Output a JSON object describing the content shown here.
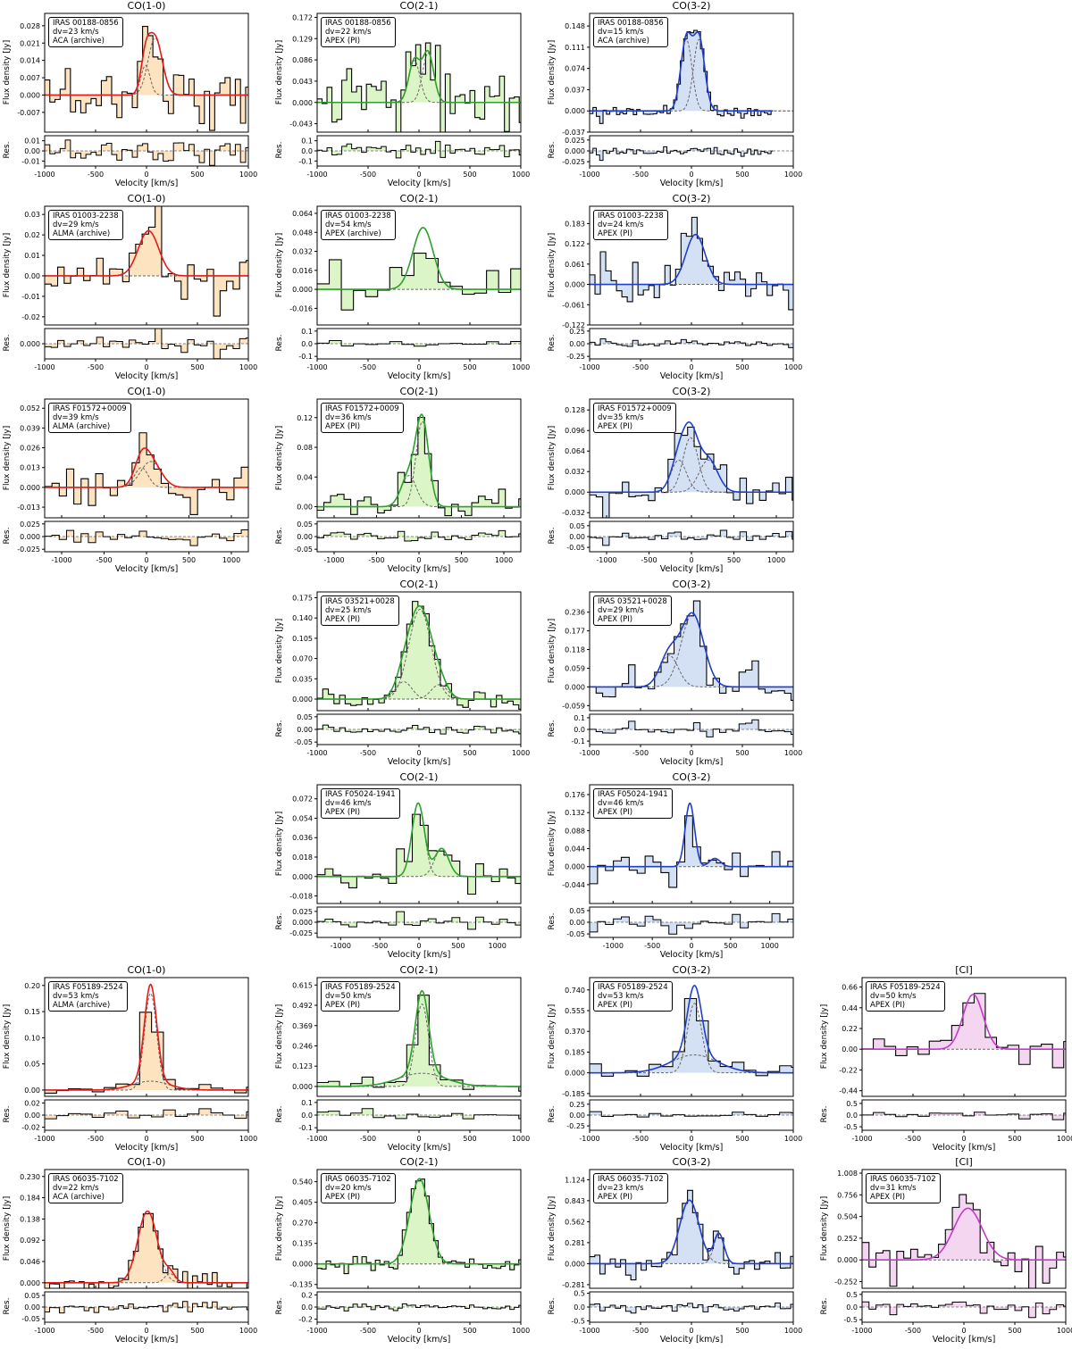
{
  "figure": {
    "xlabel": "Velocity [km/s]",
    "ylabel_main": "Flux density [Jy]",
    "ylabel_res": "Res.",
    "colors": {
      "CO(1-0)": {
        "line": "#e41a1c",
        "fill": "#fde3c0"
      },
      "CO(2-1)": {
        "line": "#2ca02c",
        "fill": "#dcf5c6"
      },
      "CO(3-2)": {
        "line": "#1f3fcc",
        "fill": "#d4e0f4"
      },
      "[CI]": {
        "line": "#c23bc8",
        "fill": "#f5d6f1"
      }
    }
  },
  "chart_data": [
    {
      "row": 0,
      "col": 0,
      "type": "line",
      "title": "CO(1-0)",
      "source": "IRAS 00188-0856",
      "dv": "dv=23 km/s",
      "telescope": "ACA (archive)",
      "xlim": [
        -1000,
        1000
      ],
      "xticks": [
        "-1000",
        "-500",
        "0",
        "500",
        "1000"
      ],
      "ylim": [
        -0.015,
        0.033
      ],
      "yticks": [
        "0.028",
        "0.021",
        "0.014",
        "0.007",
        "0.000",
        "-0.007"
      ],
      "res_ylim": [
        -0.015,
        0.015
      ],
      "res_yticks": [
        "0.01",
        "0.00",
        "-0.01"
      ],
      "components": [
        {
          "amp": 0.012,
          "center": -10,
          "sigma": 45
        },
        {
          "amp": 0.023,
          "center": 85,
          "sigma": 70
        }
      ],
      "noise": 0.007,
      "bin_width": 23
    },
    {
      "row": 0,
      "col": 1,
      "type": "line",
      "title": "CO(2-1)",
      "source": "IRAS 00188-0856",
      "dv": "dv=22 km/s",
      "telescope": "APEX (PI)",
      "xlim": [
        -1000,
        1000
      ],
      "xticks": [
        "-1000",
        "-500",
        "0",
        "500",
        "1000"
      ],
      "ylim": [
        -0.06,
        0.18
      ],
      "yticks": [
        "0.172",
        "0.129",
        "0.086",
        "0.043",
        "0.000",
        "-0.043"
      ],
      "res_ylim": [
        -0.15,
        0.15
      ],
      "res_yticks": [
        "0.1",
        "0.0",
        "-0.1"
      ],
      "components": [
        {
          "amp": 0.085,
          "center": -45,
          "sigma": 55
        },
        {
          "amp": 0.1,
          "center": 90,
          "sigma": 55
        }
      ],
      "noise": 0.045,
      "bin_width": 22
    },
    {
      "row": 0,
      "col": 2,
      "type": "line",
      "title": "CO(3-2)",
      "source": "IRAS 00188-0856",
      "dv": "dv=15 km/s",
      "telescope": "ACA (archive)",
      "xlim": [
        -1000,
        1000
      ],
      "xticks": [
        "-1000",
        "-500",
        "0",
        "500",
        "1000"
      ],
      "ylim": [
        -0.037,
        0.17
      ],
      "data_xmax": 800,
      "yticks": [
        "0.148",
        "0.111",
        "0.074",
        "0.037",
        "0.000",
        "-0.037"
      ],
      "res_ylim": [
        -0.035,
        0.035
      ],
      "res_yticks": [
        "0.025",
        "0.000",
        "-0.025"
      ],
      "components": [
        {
          "amp": 0.125,
          "center": -50,
          "sigma": 55
        },
        {
          "amp": 0.125,
          "center": 75,
          "sigma": 55
        }
      ],
      "noise": 0.007,
      "bin_width": 15
    },
    {
      "row": 1,
      "col": 0,
      "type": "line",
      "title": "CO(1-0)",
      "source": "IRAS 01003-2238",
      "dv": "dv=29 km/s",
      "telescope": "ALMA (archive)",
      "xlim": [
        -1000,
        1000
      ],
      "xticks": [
        "-1000",
        "-500",
        "0",
        "500",
        "1000"
      ],
      "ylim": [
        -0.024,
        0.034
      ],
      "yticks": [
        "0.03",
        "0.02",
        "0.01",
        "0.00",
        "-0.01",
        "-0.02"
      ],
      "res_ylim": [
        -0.02,
        0.02
      ],
      "res_yticks": [
        "0.025",
        "0.000",
        "-0.025"
      ],
      "components": [
        {
          "amp": 0.022,
          "center": 20,
          "sigma": 100
        }
      ],
      "noise": 0.008,
      "bin_width": 29
    },
    {
      "row": 1,
      "col": 1,
      "type": "line",
      "title": "CO(2-1)",
      "source": "IRAS 01003-2238",
      "dv": "dv=54 km/s",
      "telescope": "APEX (archive)",
      "xlim": [
        -1000,
        1000
      ],
      "xticks": [
        "-1000",
        "-500",
        "0",
        "500",
        "1000"
      ],
      "ylim": [
        -0.03,
        0.07
      ],
      "yticks": [
        "0.064",
        "0.048",
        "0.032",
        "0.016",
        "0.000",
        "-0.016"
      ],
      "res_ylim": [
        -0.12,
        0.12
      ],
      "res_yticks": [
        "0.1",
        "0.0",
        "-0.1"
      ],
      "components": [
        {
          "amp": 0.052,
          "center": 40,
          "sigma": 100
        }
      ],
      "noise": 0.016,
      "bin_width": 54
    },
    {
      "row": 1,
      "col": 2,
      "type": "line",
      "title": "CO(3-2)",
      "source": "IRAS 01003-2238",
      "dv": "dv=24 km/s",
      "telescope": "APEX (PI)",
      "xlim": [
        -1000,
        1000
      ],
      "xticks": [
        "-1000",
        "-500",
        "0",
        "500",
        "1000"
      ],
      "ylim": [
        -0.122,
        0.235
      ],
      "yticks": [
        "0.183",
        "0.122",
        "0.061",
        "0.000",
        "-0.061",
        "-0.122"
      ],
      "res_ylim": [
        -0.3,
        0.3
      ],
      "res_yticks": [
        "0.25",
        "0.00",
        "-0.25"
      ],
      "components": [
        {
          "amp": 0.15,
          "center": 40,
          "sigma": 95
        }
      ],
      "noise": 0.05,
      "bin_width": 24
    },
    {
      "row": 2,
      "col": 0,
      "type": "line",
      "title": "CO(1-0)",
      "source": "IRAS F01572+0009",
      "dv": "dv=39 km/s",
      "telescope": "ALMA (archive)",
      "xlim": [
        -1200,
        1200
      ],
      "xticks": [
        "-1000",
        "-500",
        "0",
        "500",
        "1000"
      ],
      "ylim": [
        -0.02,
        0.058
      ],
      "yticks": [
        "0.052",
        "0.039",
        "0.026",
        "0.013",
        "0.000",
        "-0.013"
      ],
      "res_ylim": [
        -0.03,
        0.03
      ],
      "res_yticks": [
        "0.025",
        "0.000",
        "-0.025"
      ],
      "components": [
        {
          "amp": 0.013,
          "center": -60,
          "sigma": 80
        },
        {
          "amp": 0.017,
          "center": 50,
          "sigma": 120
        }
      ],
      "noise": 0.008,
      "bin_width": 39
    },
    {
      "row": 2,
      "col": 1,
      "type": "line",
      "title": "CO(2-1)",
      "source": "IRAS F01572+0009",
      "dv": "dv=36 km/s",
      "telescope": "APEX (PI)",
      "xlim": [
        -1200,
        1200
      ],
      "xticks": [
        "-1000",
        "-500",
        "0",
        "500",
        "1000"
      ],
      "ylim": [
        -0.015,
        0.145
      ],
      "yticks": [
        "0.12",
        "0.08",
        "0.04",
        "0.00"
      ],
      "res_ylim": [
        -0.06,
        0.06
      ],
      "res_yticks": [
        "0.05",
        "0.00",
        "-0.05"
      ],
      "components": [
        {
          "amp": 0.042,
          "center": -120,
          "sigma": 90
        },
        {
          "amp": 0.115,
          "center": 40,
          "sigma": 75
        }
      ],
      "noise": 0.012,
      "bin_width": 36
    },
    {
      "row": 2,
      "col": 2,
      "type": "line",
      "title": "CO(3-2)",
      "source": "IRAS F01572+0009",
      "dv": "dv=35 km/s",
      "telescope": "APEX (PI)",
      "xlim": [
        -1200,
        1200
      ],
      "xticks": [
        "-1000",
        "-500",
        "0",
        "500",
        "1000"
      ],
      "ylim": [
        -0.04,
        0.145
      ],
      "yticks": [
        "0.128",
        "0.096",
        "0.064",
        "0.032",
        "0.000",
        "-0.032"
      ],
      "res_ylim": [
        -0.07,
        0.07
      ],
      "res_yticks": [
        "0.05",
        "0.00",
        "-0.05"
      ],
      "components": [
        {
          "amp": 0.05,
          "center": -150,
          "sigma": 90
        },
        {
          "amp": 0.085,
          "center": -10,
          "sigma": 90
        },
        {
          "amp": 0.05,
          "center": 200,
          "sigma": 110
        }
      ],
      "noise": 0.018,
      "bin_width": 35
    },
    {
      "row": 3,
      "col": 1,
      "type": "line",
      "title": "CO(2-1)",
      "source": "IRAS 03521+0028",
      "dv": "dv=25 km/s",
      "telescope": "APEX (PI)",
      "xlim": [
        -1000,
        1000
      ],
      "xticks": [
        "-1000",
        "-500",
        "0",
        "500",
        "1000"
      ],
      "ylim": [
        -0.02,
        0.185
      ],
      "yticks": [
        "0.175",
        "0.140",
        "0.105",
        "0.070",
        "0.035",
        "0.000"
      ],
      "res_ylim": [
        -0.06,
        0.06
      ],
      "res_yticks": [
        "0.05",
        "0.00",
        "-0.05"
      ],
      "components": [
        {
          "amp": 0.03,
          "center": -150,
          "sigma": 80
        },
        {
          "amp": 0.155,
          "center": 10,
          "sigma": 110
        },
        {
          "amp": 0.025,
          "center": 200,
          "sigma": 80
        }
      ],
      "noise": 0.012,
      "bin_width": 25
    },
    {
      "row": 3,
      "col": 2,
      "type": "line",
      "title": "CO(3-2)",
      "source": "IRAS 03521+0028",
      "dv": "dv=29 km/s",
      "telescope": "APEX (PI)",
      "xlim": [
        -1000,
        1000
      ],
      "xticks": [
        "-1000",
        "-500",
        "0",
        "500",
        "1000"
      ],
      "ylim": [
        -0.075,
        0.3
      ],
      "yticks": [
        "0.236",
        "0.177",
        "0.118",
        "0.059",
        "0.000",
        "-0.059"
      ],
      "res_ylim": [
        -0.13,
        0.13
      ],
      "res_yticks": [
        "0.1",
        "0.0",
        "-0.1"
      ],
      "components": [
        {
          "amp": 0.1,
          "center": -220,
          "sigma": 90
        },
        {
          "amp": 0.23,
          "center": 10,
          "sigma": 110
        }
      ],
      "noise": 0.03,
      "bin_width": 29
    },
    {
      "row": 4,
      "col": 1,
      "type": "line",
      "title": "CO(2-1)",
      "source": "IRAS F05024-1941",
      "dv": "dv=46 km/s",
      "telescope": "APEX (PI)",
      "xlim": [
        -1300,
        1300
      ],
      "xticks": [
        "-1000",
        "-500",
        "0",
        "500",
        "1000"
      ],
      "ylim": [
        -0.025,
        0.085
      ],
      "yticks": [
        "0.072",
        "0.054",
        "0.036",
        "0.018",
        "0.000",
        "-0.018"
      ],
      "res_ylim": [
        -0.035,
        0.035
      ],
      "res_yticks": [
        "0.025",
        "0.000",
        "-0.025"
      ],
      "components": [
        {
          "amp": 0.068,
          "center": -10,
          "sigma": 80
        },
        {
          "amp": 0.026,
          "center": 290,
          "sigma": 90
        }
      ],
      "noise": 0.009,
      "bin_width": 46
    },
    {
      "row": 4,
      "col": 2,
      "type": "line",
      "title": "CO(3-2)",
      "source": "IRAS F05024-1941",
      "dv": "dv=46 km/s",
      "telescope": "APEX (PI)",
      "xlim": [
        -1300,
        1300
      ],
      "xticks": [
        "-1000",
        "-500",
        "0",
        "500",
        "1000"
      ],
      "ylim": [
        -0.09,
        0.2
      ],
      "yticks": [
        "0.176",
        "0.132",
        "0.088",
        "0.044",
        "0.000",
        "-0.044"
      ],
      "res_ylim": [
        -0.065,
        0.065
      ],
      "res_yticks": [
        "0.05",
        "0.00",
        "-0.05"
      ],
      "components": [
        {
          "amp": 0.155,
          "center": -20,
          "sigma": 60
        },
        {
          "amp": 0.02,
          "center": 300,
          "sigma": 70
        }
      ],
      "noise": 0.022,
      "bin_width": 46
    },
    {
      "row": 5,
      "col": 0,
      "type": "line",
      "title": "CO(1-0)",
      "source": "IRAS F05189-2524",
      "dv": "dv=53 km/s",
      "telescope": "ALMA (archive)",
      "xlim": [
        -1000,
        1000
      ],
      "xticks": [
        "-1000",
        "-500",
        "0",
        "500",
        "1000"
      ],
      "ylim": [
        -0.012,
        0.215
      ],
      "yticks": [
        "0.20",
        "0.15",
        "0.10",
        "0.05",
        "0.00"
      ],
      "res_ylim": [
        -0.025,
        0.025
      ],
      "res_yticks": [
        "0.02",
        "0.00",
        "-0.02"
      ],
      "components": [
        {
          "amp": 0.185,
          "center": 40,
          "sigma": 60
        },
        {
          "amp": 0.017,
          "center": 40,
          "sigma": 180
        }
      ],
      "noise": 0.005,
      "bin_width": 53
    },
    {
      "row": 5,
      "col": 1,
      "type": "line",
      "title": "CO(2-1)",
      "source": "IRAS F05189-2524",
      "dv": "dv=50 km/s",
      "telescope": "APEX (PI)",
      "xlim": [
        -1000,
        1000
      ],
      "xticks": [
        "-1000",
        "-500",
        "0",
        "500",
        "1000"
      ],
      "ylim": [
        -0.06,
        0.66
      ],
      "yticks": [
        "0.615",
        "0.492",
        "0.369",
        "0.246",
        "0.123",
        "0.000"
      ],
      "res_ylim": [
        -0.12,
        0.12
      ],
      "res_yticks": [
        "0.1",
        "0.0",
        "-0.1"
      ],
      "components": [
        {
          "amp": 0.5,
          "center": 30,
          "sigma": 65
        },
        {
          "amp": 0.08,
          "center": 30,
          "sigma": 230
        }
      ],
      "noise": 0.025,
      "bin_width": 50
    },
    {
      "row": 5,
      "col": 2,
      "type": "line",
      "title": "CO(3-2)",
      "source": "IRAS F05189-2524",
      "dv": "dv=53 km/s",
      "telescope": "APEX (PI)",
      "xlim": [
        -1000,
        1000
      ],
      "xticks": [
        "-1000",
        "-500",
        "0",
        "500",
        "1000"
      ],
      "ylim": [
        -0.21,
        0.85
      ],
      "yticks": [
        "0.740",
        "0.555",
        "0.370",
        "0.185",
        "0.000",
        "-0.185"
      ],
      "res_ylim": [
        -0.35,
        0.35
      ],
      "res_yticks": [
        "0.25",
        "0.00",
        "-0.25"
      ],
      "components": [
        {
          "amp": 0.62,
          "center": 30,
          "sigma": 70
        },
        {
          "amp": 0.16,
          "center": 30,
          "sigma": 230
        }
      ],
      "noise": 0.05,
      "bin_width": 53
    },
    {
      "row": 5,
      "col": 3,
      "type": "line",
      "title": "[CI]",
      "source": "IRAS F05189-2524",
      "dv": "dv=50 km/s",
      "telescope": "APEX (PI)",
      "xlim": [
        -1000,
        1000
      ],
      "xticks": [
        "-1000",
        "-500",
        "0",
        "500",
        "1000"
      ],
      "ylim": [
        -0.5,
        0.76
      ],
      "yticks": [
        "0.66",
        "0.44",
        "0.22",
        "0.00",
        "-0.22",
        "-0.44"
      ],
      "res_ylim": [
        -0.65,
        0.65
      ],
      "res_yticks": [
        "0.5",
        "0.0",
        "-0.5"
      ],
      "components": [
        {
          "amp": 0.58,
          "center": 90,
          "sigma": 100
        }
      ],
      "noise": 0.1,
      "bin_width": 50
    },
    {
      "row": 6,
      "col": 0,
      "type": "line",
      "title": "CO(1-0)",
      "source": "IRAS 06035-7102",
      "dv": "dv=22 km/s",
      "telescope": "ACA (archive)",
      "xlim": [
        -1000,
        1000
      ],
      "xticks": [
        "-1000",
        "-500",
        "0",
        "500",
        "1000"
      ],
      "ylim": [
        -0.012,
        0.245
      ],
      "yticks": [
        "0.230",
        "0.184",
        "0.138",
        "0.092",
        "0.046",
        "0.000"
      ],
      "res_ylim": [
        -0.065,
        0.065
      ],
      "res_yticks": [
        "0.05",
        "0.00",
        "-0.05"
      ],
      "components": [
        {
          "amp": 0.155,
          "center": 10,
          "sigma": 95
        },
        {
          "amp": 0.02,
          "center": 230,
          "sigma": 50
        }
      ],
      "noise": 0.015,
      "bin_width": 22
    },
    {
      "row": 6,
      "col": 1,
      "type": "line",
      "title": "CO(2-1)",
      "source": "IRAS 06035-7102",
      "dv": "dv=20 km/s",
      "telescope": "APEX (PI)",
      "xlim": [
        -1000,
        1000
      ],
      "xticks": [
        "-1000",
        "-500",
        "0",
        "500",
        "1000"
      ],
      "ylim": [
        -0.16,
        0.62
      ],
      "yticks": [
        "0.540",
        "0.405",
        "0.270",
        "0.135",
        "0.000",
        "-0.135"
      ],
      "res_ylim": [
        -0.25,
        0.25
      ],
      "res_yticks": [
        "0.2",
        "0.0",
        "-0.2"
      ],
      "components": [
        {
          "amp": 0.56,
          "center": 5,
          "sigma": 95
        }
      ],
      "noise": 0.035,
      "bin_width": 20
    },
    {
      "row": 6,
      "col": 2,
      "type": "line",
      "title": "CO(3-2)",
      "source": "IRAS 06035-7102",
      "dv": "dv=23 km/s",
      "telescope": "APEX (PI)",
      "xlim": [
        -1000,
        1000
      ],
      "xticks": [
        "-1000",
        "-500",
        "0",
        "500",
        "1000"
      ],
      "ylim": [
        -0.33,
        1.26
      ],
      "yticks": [
        "1.124",
        "0.843",
        "0.562",
        "0.281",
        "0.000",
        "-0.281"
      ],
      "res_ylim": [
        -0.55,
        0.55
      ],
      "res_yticks": [
        "0.5",
        "0.0",
        "-0.5"
      ],
      "components": [
        {
          "amp": 0.85,
          "center": -20,
          "sigma": 95
        },
        {
          "amp": 0.4,
          "center": 270,
          "sigma": 50
        }
      ],
      "noise": 0.12,
      "bin_width": 23
    },
    {
      "row": 6,
      "col": 3,
      "type": "line",
      "title": "[CI]",
      "source": "IRAS 06035-7102",
      "dv": "dv=31 km/s",
      "telescope": "APEX (PI)",
      "xlim": [
        -1000,
        1000
      ],
      "xticks": [
        "-1000",
        "-500",
        "0",
        "500",
        "1000"
      ],
      "ylim": [
        -0.33,
        1.05
      ],
      "yticks": [
        "1.008",
        "0.756",
        "0.504",
        "0.252",
        "0.000",
        "-0.252"
      ],
      "res_ylim": [
        -0.6,
        0.6
      ],
      "res_yticks": [
        "0.5",
        "0.0",
        "-0.5"
      ],
      "components": [
        {
          "amp": 0.6,
          "center": 40,
          "sigma": 140
        }
      ],
      "noise": 0.17,
      "bin_width": 31
    }
  ]
}
